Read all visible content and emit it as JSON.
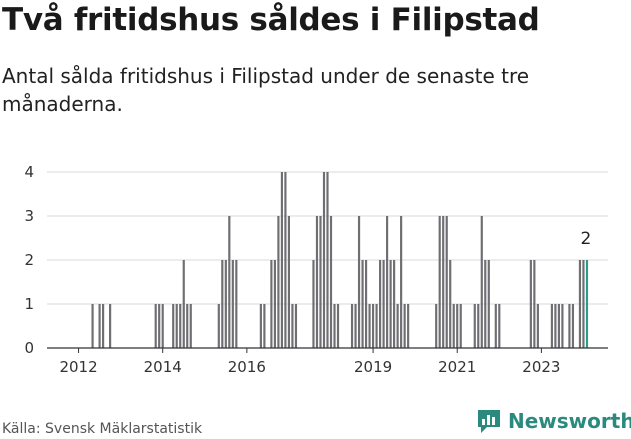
{
  "title": "Två fritidshus såldes i Filipstad",
  "subtitle": "Antal sålda fritidshus i Filipstad under de senaste tre månaderna.",
  "source": "Källa: Svensk Mäklarstatistik",
  "logo_text": "Newsworthy",
  "colors": {
    "bar": "#6e6e73",
    "highlight": "#2b9c8a",
    "grid": "#d8d8d8",
    "axis": "#333333",
    "logo": "#2b8a7e"
  },
  "chart_data": {
    "type": "bar",
    "title": "Två fritidshus såldes i Filipstad",
    "xlabel": "",
    "ylabel": "",
    "ylim": [
      0,
      4
    ],
    "xlim": [
      "2011-04",
      "2024-08"
    ],
    "yticks": [
      0,
      1,
      2,
      3,
      4
    ],
    "xticks": [
      "2012",
      "2014",
      "2016",
      "2019",
      "2021",
      "2023"
    ],
    "grid": true,
    "annotation": {
      "x": "2024-02",
      "value": "2"
    },
    "highlight_last": true,
    "series": [
      {
        "x": [
          "2012-05",
          "2012-06",
          "2012-07",
          "2012-08",
          "2012-09",
          "2012-10",
          "2012-11",
          "2013-11",
          "2013-12",
          "2014-01",
          "2014-04",
          "2014-05",
          "2014-06",
          "2014-07",
          "2014-08",
          "2014-09",
          "2015-05",
          "2015-06",
          "2015-07",
          "2015-08",
          "2015-09",
          "2015-10",
          "2015-11",
          "2016-05",
          "2016-06",
          "2016-07",
          "2016-08",
          "2016-09",
          "2016-10",
          "2016-11",
          "2016-12",
          "2017-01",
          "2017-02",
          "2017-03",
          "2017-04",
          "2017-08",
          "2017-09",
          "2017-10",
          "2017-11",
          "2017-12",
          "2018-01",
          "2018-02",
          "2018-03",
          "2018-04",
          "2018-07",
          "2018-08",
          "2018-09",
          "2018-10",
          "2018-11",
          "2018-12",
          "2019-01",
          "2019-02",
          "2019-03",
          "2019-04",
          "2019-05",
          "2019-06",
          "2019-07",
          "2019-08",
          "2019-09",
          "2019-10",
          "2019-11",
          "2020-07",
          "2020-08",
          "2020-09",
          "2020-10",
          "2020-11",
          "2020-12",
          "2021-01",
          "2021-02",
          "2021-03",
          "2021-06",
          "2021-07",
          "2021-08",
          "2021-09",
          "2021-10",
          "2021-11",
          "2021-12",
          "2022-01",
          "2022-10",
          "2022-11",
          "2022-12",
          "2023-04",
          "2023-05",
          "2023-06",
          "2023-07",
          "2023-08",
          "2023-09",
          "2023-10",
          "2023-11",
          "2023-12",
          "2024-01",
          "2024-02"
        ],
        "values": [
          1,
          0,
          1,
          1,
          0,
          1,
          0,
          1,
          1,
          1,
          1,
          1,
          1,
          2,
          1,
          1,
          1,
          2,
          2,
          3,
          2,
          2,
          0,
          1,
          1,
          0,
          2,
          2,
          3,
          4,
          4,
          3,
          1,
          1,
          0,
          2,
          3,
          3,
          4,
          4,
          3,
          1,
          1,
          0,
          1,
          1,
          3,
          2,
          2,
          1,
          1,
          1,
          2,
          2,
          3,
          2,
          2,
          1,
          3,
          1,
          1,
          1,
          3,
          3,
          3,
          2,
          1,
          1,
          1,
          0,
          1,
          1,
          3,
          2,
          2,
          0,
          1,
          1,
          2,
          2,
          1,
          1,
          1,
          1,
          1,
          0,
          1,
          1,
          0,
          2,
          2,
          2
        ]
      }
    ]
  }
}
